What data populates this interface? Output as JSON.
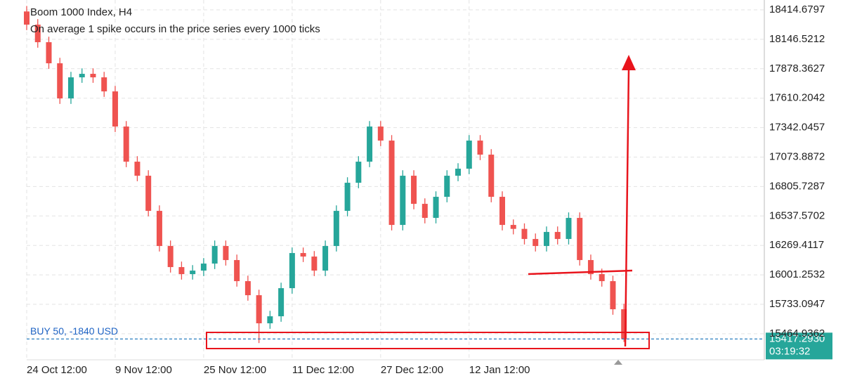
{
  "chart_data": {
    "type": "candlestick",
    "title": "Boom 1000 Index, H4",
    "subtitle": "On average 1 spike occurs in the price series every 1000 ticks",
    "open": [
      18400,
      18280,
      18120,
      17928,
      17608,
      17800,
      17832,
      17800,
      17672,
      17352,
      17032,
      16904,
      16584,
      16264,
      16072,
      16008,
      16040,
      16104,
      16264,
      16136,
      15944,
      15816,
      15560,
      15624,
      15880,
      16200,
      16168,
      16040,
      16264,
      16584,
      16840,
      17032,
      17352,
      17224,
      16456,
      16904,
      16648,
      16520,
      16712,
      16904,
      16968,
      17224,
      17096,
      16712,
      16456,
      16420,
      16328,
      16264,
      16392,
      16328,
      16520,
      16136,
      16008,
      15944,
      15688
    ],
    "high": [
      18450,
      18330,
      18170,
      17978,
      17850,
      17882,
      17882,
      17850,
      17722,
      17402,
      17082,
      16954,
      16634,
      16314,
      16122,
      16090,
      16154,
      16314,
      16314,
      16186,
      15994,
      15866,
      15674,
      15930,
      16250,
      16250,
      16218,
      16314,
      16634,
      16890,
      17082,
      17402,
      17402,
      17274,
      16954,
      16954,
      16698,
      16762,
      16954,
      17018,
      17274,
      17274,
      17146,
      16762,
      16506,
      16470,
      16378,
      16442,
      16442,
      16570,
      16570,
      16186,
      16058,
      15994,
      15738
    ],
    "low": [
      18230,
      18070,
      17878,
      17558,
      17558,
      17750,
      17750,
      17622,
      17302,
      16982,
      16854,
      16534,
      16214,
      16022,
      15958,
      15958,
      15990,
      16054,
      16086,
      15894,
      15766,
      15380,
      15510,
      15574,
      15830,
      16118,
      15990,
      15990,
      16214,
      16534,
      16790,
      16982,
      17174,
      16406,
      16406,
      16598,
      16470,
      16470,
      16662,
      16854,
      16918,
      17046,
      16662,
      16406,
      16370,
      16278,
      16214,
      16214,
      16278,
      16278,
      16086,
      15958,
      15894,
      15638,
      15390
    ],
    "close": [
      18280,
      18120,
      17928,
      17608,
      17800,
      17832,
      17800,
      17672,
      17352,
      17032,
      16904,
      16584,
      16264,
      16072,
      16008,
      16040,
      16104,
      16264,
      16136,
      15944,
      15816,
      15560,
      15624,
      15880,
      16200,
      16168,
      16040,
      16264,
      16584,
      16840,
      17032,
      17352,
      17224,
      16456,
      16904,
      16648,
      16520,
      16712,
      16904,
      16968,
      17224,
      17096,
      16712,
      16456,
      16420,
      16328,
      16264,
      16392,
      16328,
      16520,
      16136,
      16008,
      15944,
      15688,
      15417.293
    ],
    "up_color": "#26a69a",
    "down_color": "#ef5350",
    "xlim": [
      0,
      66.5
    ],
    "xticks": [
      {
        "value": 0,
        "label": "24 Oct 12:00"
      },
      {
        "value": 8,
        "label": "9 Nov 12:00"
      },
      {
        "value": 16,
        "label": "25 Nov 12:00"
      },
      {
        "value": 24,
        "label": "11 Dec 12:00"
      },
      {
        "value": 32,
        "label": "27 Dec 12:00"
      },
      {
        "value": 40,
        "label": "12 Jan 12:00"
      }
    ],
    "ylim": [
      15227.6,
      18504.3
    ],
    "yticks": [
      18414.6797,
      18146.5212,
      17878.3627,
      17610.2042,
      17342.0457,
      17073.8872,
      16805.7287,
      16537.5702,
      16269.4117,
      16001.2532,
      15733.0947,
      15464.9362
    ],
    "grid": true,
    "last_price": {
      "value": 15417.293,
      "label": "15417.2930"
    },
    "countdown": "03:19:32",
    "position_label": "BUY 50, -1840 USD"
  }
}
